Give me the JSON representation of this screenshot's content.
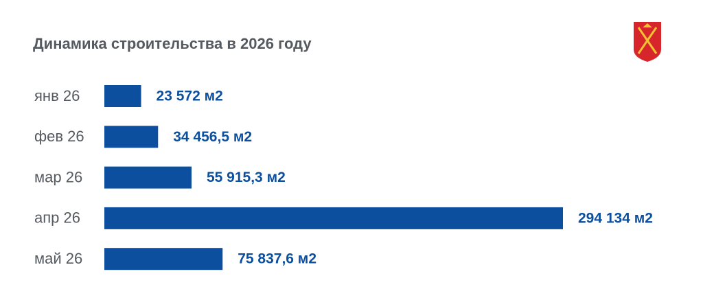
{
  "chart_data": {
    "type": "bar",
    "orientation": "horizontal",
    "title": "Динамика строительства в 2026 году",
    "categories": [
      "янв 26",
      "фев 26",
      "мар 26",
      "апр 26",
      "май 26"
    ],
    "values": [
      23572,
      34456.5,
      55915.3,
      294134,
      75837.6
    ],
    "value_labels": [
      "23 572 м2",
      "34 456,5 м2",
      "55 915,3 м2",
      "294 134 м2",
      "75 837,6 м2"
    ],
    "color": "#0b4f9e"
  }
}
